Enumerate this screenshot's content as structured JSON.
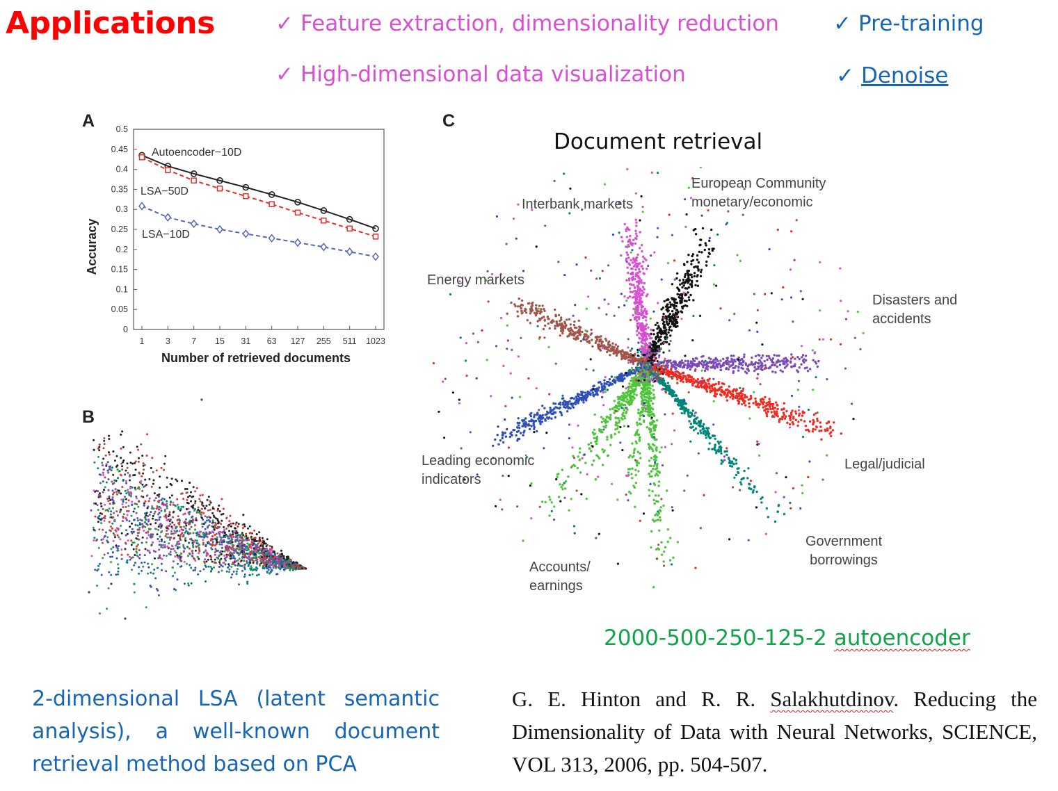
{
  "title": "Applications",
  "applications": [
    {
      "check": "✓",
      "text": "Feature extraction, dimensionality reduction",
      "color": "#d94fd3"
    },
    {
      "check": "✓",
      "text": "High-dimensional data visualization",
      "color": "#d94fd3"
    },
    {
      "check": "✓",
      "text": "Pre-training",
      "color": "#1765b5"
    },
    {
      "check": "✓",
      "text": "Denoise",
      "color": "#1765b5"
    }
  ],
  "panels": {
    "a": "A",
    "b": "B",
    "c": "C"
  },
  "document_retrieval_title": "Document retrieval",
  "autoencoder_caption": {
    "numbers": "2000-500-250-125-2",
    "word": "autoencoder"
  },
  "lsa_caption": "2-dimensional LSA (latent semantic analysis), a well-known document retrieval method based on PCA",
  "reference": {
    "before": "G. E. Hinton and R. R. ",
    "name": "Salakhutdinov",
    "after": ". Reducing the Dimensionality of Data with Neural Networks, SCIENCE, VOL 313, 2006, pp. 504-507."
  },
  "cluster_labels": {
    "european_1": "European Community",
    "european_2": "monetary/economic",
    "interbank": "Interbank markets",
    "energy": "Energy markets",
    "disasters_1": "Disasters and",
    "disasters_2": "accidents",
    "leading_1": "Leading economic",
    "leading_2": "indicators",
    "legal": "Legal/judicial",
    "government_1": "Government",
    "government_2": "borrowings",
    "accounts_1": "Accounts/",
    "accounts_2": "earnings"
  },
  "chart_data": [
    {
      "type": "line",
      "panel": "A",
      "xlabel": "Number of retrieved documents",
      "ylabel": "Accuracy",
      "categories": [
        "1",
        "3",
        "7",
        "15",
        "31",
        "63",
        "127",
        "255",
        "511",
        "1023"
      ],
      "ylim": [
        0,
        0.5
      ],
      "yticks": [
        "0",
        "0.05",
        "0.1",
        "0.15",
        "0.2",
        "0.25",
        "0.3",
        "0.35",
        "0.4",
        "0.45",
        "0.5"
      ],
      "grid": false,
      "series": [
        {
          "name": "Autoencoder−10D",
          "color": "#222222",
          "marker": "circle",
          "dashed": false,
          "values": [
            0.435,
            0.408,
            0.389,
            0.372,
            0.355,
            0.337,
            0.318,
            0.297,
            0.275,
            0.252
          ]
        },
        {
          "name": "LSA−50D",
          "color": "#e3302f",
          "marker": "square",
          "dashed": true,
          "values": [
            0.43,
            0.398,
            0.372,
            0.352,
            0.333,
            0.313,
            0.292,
            0.272,
            0.252,
            0.232
          ]
        },
        {
          "name": "LSA−10D",
          "color": "#5566b6",
          "marker": "diamond",
          "dashed": true,
          "values": [
            0.308,
            0.28,
            0.264,
            0.25,
            0.239,
            0.228,
            0.217,
            0.206,
            0.194,
            0.182
          ]
        }
      ]
    },
    {
      "type": "scatter",
      "panel": "B",
      "description_shape": "cone pointing right",
      "colors": [
        "#222222",
        "#e3302f",
        "#3b55c0",
        "#8a4ab8",
        "#2aa040",
        "#d94fd3",
        "#a0564b",
        "#00857a"
      ]
    },
    {
      "type": "scatter",
      "panel": "C",
      "clusters": [
        {
          "label_key": "european_1",
          "color": "#111111"
        },
        {
          "label_key": "interbank",
          "color": "#d94fd3"
        },
        {
          "label_key": "energy",
          "color": "#a0564b"
        },
        {
          "label_key": "disasters_1",
          "color": "#7a4ab8"
        },
        {
          "label_key": "leading_1",
          "color": "#2e4fb8"
        },
        {
          "label_key": "legal",
          "color": "#f02a1f"
        },
        {
          "label_key": "government_1",
          "color": "#00857a"
        },
        {
          "label_key": "accounts_1",
          "color": "#4ec43b"
        }
      ]
    }
  ]
}
